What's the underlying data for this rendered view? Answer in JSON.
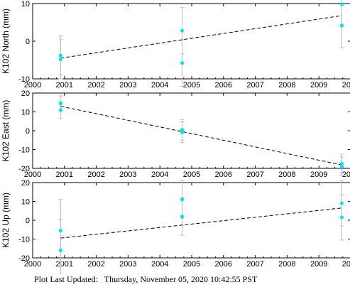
{
  "footer": {
    "label": "Plot Last Updated:",
    "timestamp": "Thursday, November 05, 2020 10:42:55 PST"
  },
  "chart_data": [
    {
      "type": "scatter",
      "ylabel": "K102 North (mm)",
      "xlim": [
        2000,
        2010
      ],
      "ylim": [
        -10,
        10
      ],
      "xticks": [
        2000,
        2001,
        2002,
        2003,
        2004,
        2005,
        2006,
        2007,
        2008,
        2009,
        2010
      ],
      "yticks": [
        -10,
        0,
        10
      ],
      "points": [
        {
          "x": 2000.88,
          "y": -3.8,
          "err": 5.2
        },
        {
          "x": 2000.88,
          "y": -4.8,
          "err": 5.2
        },
        {
          "x": 2004.7,
          "y": 2.8,
          "err": 6.2
        },
        {
          "x": 2004.7,
          "y": -5.8,
          "err": 6.2
        },
        {
          "x": 2009.72,
          "y": 9.8,
          "err": 6.0
        },
        {
          "x": 2009.72,
          "y": 4.2,
          "err": 6.0
        }
      ],
      "trend": {
        "x": [
          2000.88,
          2009.72
        ],
        "y": [
          -4.5,
          6.8
        ]
      },
      "point_color": "#00e5ee",
      "errorbar_color": "#bbbbbb",
      "trend_color": "#000000"
    },
    {
      "type": "scatter",
      "ylabel": "K102 East (mm)",
      "xlim": [
        2000,
        2010
      ],
      "ylim": [
        -20,
        20
      ],
      "xticks": [
        2000,
        2001,
        2002,
        2003,
        2004,
        2005,
        2006,
        2007,
        2008,
        2009,
        2010
      ],
      "yticks": [
        -20,
        -10,
        0,
        10,
        20
      ],
      "points": [
        {
          "x": 2000.88,
          "y": 14.5,
          "err": 4.0
        },
        {
          "x": 2000.88,
          "y": 11.0,
          "err": 4.5
        },
        {
          "x": 2004.7,
          "y": 0.5,
          "err": 5.5
        },
        {
          "x": 2004.7,
          "y": -0.8,
          "err": 5.5
        },
        {
          "x": 2009.72,
          "y": -17.5,
          "err": 5.0
        },
        {
          "x": 2009.72,
          "y": -19.0,
          "err": 5.0
        }
      ],
      "trend": {
        "x": [
          2000.88,
          2009.72
        ],
        "y": [
          13.0,
          -18.2
        ]
      },
      "point_color": "#00e5ee",
      "errorbar_color": "#bbbbbb",
      "trend_color": "#000000"
    },
    {
      "type": "scatter",
      "ylabel": "K102 Up (mm)",
      "xlim": [
        2000,
        2010
      ],
      "ylim": [
        -20,
        20
      ],
      "xticks": [
        2000,
        2001,
        2002,
        2003,
        2004,
        2005,
        2006,
        2007,
        2008,
        2009,
        2010
      ],
      "yticks": [
        -20,
        -10,
        0,
        10,
        20
      ],
      "points": [
        {
          "x": 2000.88,
          "y": -5.5,
          "err": 16.5
        },
        {
          "x": 2000.88,
          "y": -16.0,
          "err": 16.5
        },
        {
          "x": 2004.7,
          "y": 11.0,
          "err": 10.0
        },
        {
          "x": 2004.7,
          "y": 2.0,
          "err": 10.0
        },
        {
          "x": 2009.72,
          "y": 9.0,
          "err": 12.0
        },
        {
          "x": 2009.72,
          "y": 1.5,
          "err": 12.0
        }
      ],
      "trend": {
        "x": [
          2000.88,
          2009.72
        ],
        "y": [
          -9.5,
          6.5
        ]
      },
      "point_color": "#00e5ee",
      "errorbar_color": "#bbbbbb",
      "trend_color": "#000000"
    }
  ]
}
